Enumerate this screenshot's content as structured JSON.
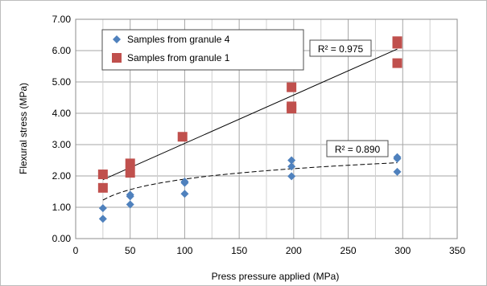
{
  "chart_data": {
    "type": "scatter",
    "xlabel": "Press pressure applied (MPa)",
    "ylabel": "Flexural stress (MPa)",
    "xlim": [
      0,
      350
    ],
    "ylim": [
      0,
      7
    ],
    "xticks": [
      "0",
      "50",
      "100",
      "150",
      "200",
      "250",
      "300",
      "350"
    ],
    "yticks": [
      "0.00",
      "1.00",
      "2.00",
      "3.00",
      "4.00",
      "5.00",
      "6.00",
      "7.00"
    ],
    "grid": true,
    "legend_position": "top-left",
    "series": [
      {
        "name": "Samples from granule 4",
        "marker": "diamond",
        "color": "#4f81bd",
        "x": [
          25,
          25,
          50,
          50,
          50,
          100,
          100,
          100,
          198,
          198,
          198,
          295,
          295,
          295
        ],
        "y": [
          0.63,
          0.97,
          1.09,
          1.35,
          1.4,
          1.43,
          1.78,
          1.82,
          1.99,
          2.3,
          2.5,
          2.13,
          2.55,
          2.6
        ],
        "trendline": {
          "type": "log",
          "r2_label": "R² = 0.890",
          "x_start": 25,
          "x_end": 295,
          "y_start": 1.23,
          "y_end": 2.42
        }
      },
      {
        "name": "Samples from granule 1",
        "marker": "square",
        "color": "#c0504d",
        "x": [
          25,
          25,
          50,
          50,
          98,
          198,
          198,
          198,
          295,
          295,
          295
        ],
        "y": [
          1.62,
          2.05,
          2.1,
          2.4,
          3.25,
          4.15,
          4.22,
          4.83,
          5.6,
          6.22,
          6.3
        ],
        "trendline": {
          "type": "linear",
          "r2_label": "R² = 0.975",
          "x_start": 25,
          "x_end": 295,
          "y_start": 1.88,
          "y_end": 6.05
        }
      }
    ]
  }
}
